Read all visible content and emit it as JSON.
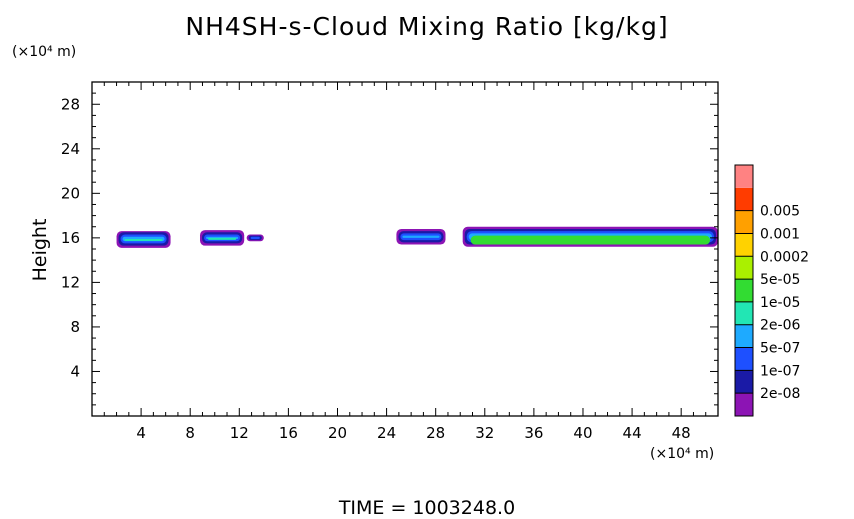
{
  "chart_data": {
    "type": "heatmap",
    "title": "NH4SH-s-Cloud Mixing Ratio [kg/kg]",
    "ylabel": "Height",
    "x_unit": "(×10⁴ m)",
    "y_unit": "(×10⁴ m)",
    "footer": "TIME = 1003248.0",
    "xlim": [
      0,
      51
    ],
    "ylim": [
      0,
      30
    ],
    "xticks": [
      4,
      8,
      12,
      16,
      20,
      24,
      28,
      32,
      36,
      40,
      44,
      48
    ],
    "yticks": [
      4,
      8,
      12,
      16,
      20,
      24,
      28
    ],
    "grid": false,
    "colorbar": {
      "levels": [
        "2e-08",
        "1e-07",
        "5e-07",
        "2e-06",
        "1e-05",
        "5e-05",
        "0.0002",
        "0.001",
        "0.005"
      ],
      "colors": [
        "#8c14b4",
        "#1a1aa6",
        "#1e50ff",
        "#1eaaff",
        "#22e6b4",
        "#32dc32",
        "#aaf000",
        "#ffd200",
        "#ffa000",
        "#ff3c00",
        "#ff8282"
      ]
    },
    "cloud_patches": [
      {
        "x_start": 2.0,
        "x_end": 6.4,
        "bands": [
          [
            15.1,
            16.6,
            0
          ],
          [
            15.3,
            16.5,
            1
          ],
          [
            15.5,
            16.3,
            2
          ],
          [
            15.7,
            16.1,
            3
          ],
          [
            15.9,
            15.9,
            4
          ]
        ]
      },
      {
        "x_start": 8.8,
        "x_end": 12.4,
        "bands": [
          [
            15.3,
            16.7,
            0
          ],
          [
            15.5,
            16.5,
            1
          ],
          [
            15.7,
            16.3,
            2
          ],
          [
            15.9,
            16.1,
            3
          ],
          [
            16.0,
            16.0,
            4
          ]
        ]
      },
      {
        "x_start": 12.6,
        "x_end": 14.0,
        "bands": [
          [
            15.7,
            16.3,
            0
          ],
          [
            15.8,
            16.2,
            1
          ],
          [
            15.9,
            16.1,
            2
          ]
        ]
      },
      {
        "x_start": 24.8,
        "x_end": 28.8,
        "bands": [
          [
            15.4,
            16.8,
            0
          ],
          [
            15.6,
            16.6,
            1
          ],
          [
            15.8,
            16.4,
            2
          ],
          [
            16.0,
            16.2,
            3
          ]
        ]
      },
      {
        "x_start": 30.2,
        "x_end": 51.0,
        "bands": [
          [
            15.2,
            17.0,
            0
          ],
          [
            15.4,
            16.8,
            1
          ],
          [
            15.6,
            16.6,
            2
          ],
          [
            15.8,
            16.4,
            3
          ],
          [
            15.4,
            16.2,
            5
          ]
        ]
      }
    ]
  }
}
